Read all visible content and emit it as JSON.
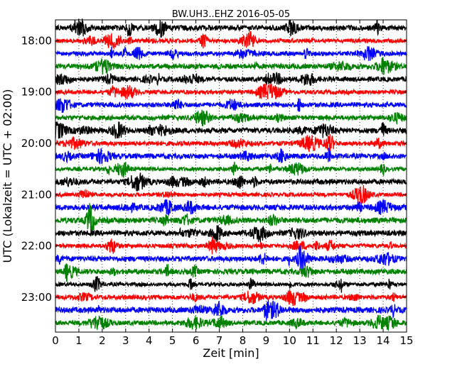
{
  "chart_data": {
    "type": "line",
    "title": "BW.UH3..EHZ 2016-05-05",
    "xlabel": "Zeit  [min]",
    "ylabel": "UTC (Lokalzeit = UTC + 02:00)",
    "xlim": [
      0,
      15
    ],
    "x_ticks": [
      0,
      1,
      2,
      3,
      4,
      5,
      6,
      7,
      8,
      9,
      10,
      11,
      12,
      13,
      14,
      15
    ],
    "y_tick_labels": [
      "18:00",
      "19:00",
      "20:00",
      "21:00",
      "22:00",
      "23:00"
    ],
    "trace_interval_minutes": 15,
    "grid": "vertical dotted lines at each minute",
    "trace_colors": [
      "#000000",
      "#ff0000",
      "#0000ff",
      "#008000"
    ],
    "traces": [
      {
        "start": "17:45",
        "color": "#000000"
      },
      {
        "start": "18:00",
        "color": "#ff0000"
      },
      {
        "start": "18:15",
        "color": "#0000ff"
      },
      {
        "start": "18:30",
        "color": "#008000"
      },
      {
        "start": "18:45",
        "color": "#000000"
      },
      {
        "start": "19:00",
        "color": "#ff0000"
      },
      {
        "start": "19:15",
        "color": "#0000ff"
      },
      {
        "start": "19:30",
        "color": "#008000"
      },
      {
        "start": "19:45",
        "color": "#000000"
      },
      {
        "start": "20:00",
        "color": "#ff0000"
      },
      {
        "start": "20:15",
        "color": "#0000ff"
      },
      {
        "start": "20:30",
        "color": "#008000"
      },
      {
        "start": "20:45",
        "color": "#000000"
      },
      {
        "start": "21:00",
        "color": "#ff0000"
      },
      {
        "start": "21:15",
        "color": "#0000ff"
      },
      {
        "start": "21:30",
        "color": "#008000"
      },
      {
        "start": "21:45",
        "color": "#000000"
      },
      {
        "start": "22:00",
        "color": "#ff0000"
      },
      {
        "start": "22:15",
        "color": "#0000ff"
      },
      {
        "start": "22:30",
        "color": "#008000"
      },
      {
        "start": "22:45",
        "color": "#000000"
      },
      {
        "start": "23:00",
        "color": "#ff0000"
      },
      {
        "start": "23:15",
        "color": "#0000ff"
      },
      {
        "start": "23:30",
        "color": "#008000"
      }
    ]
  }
}
